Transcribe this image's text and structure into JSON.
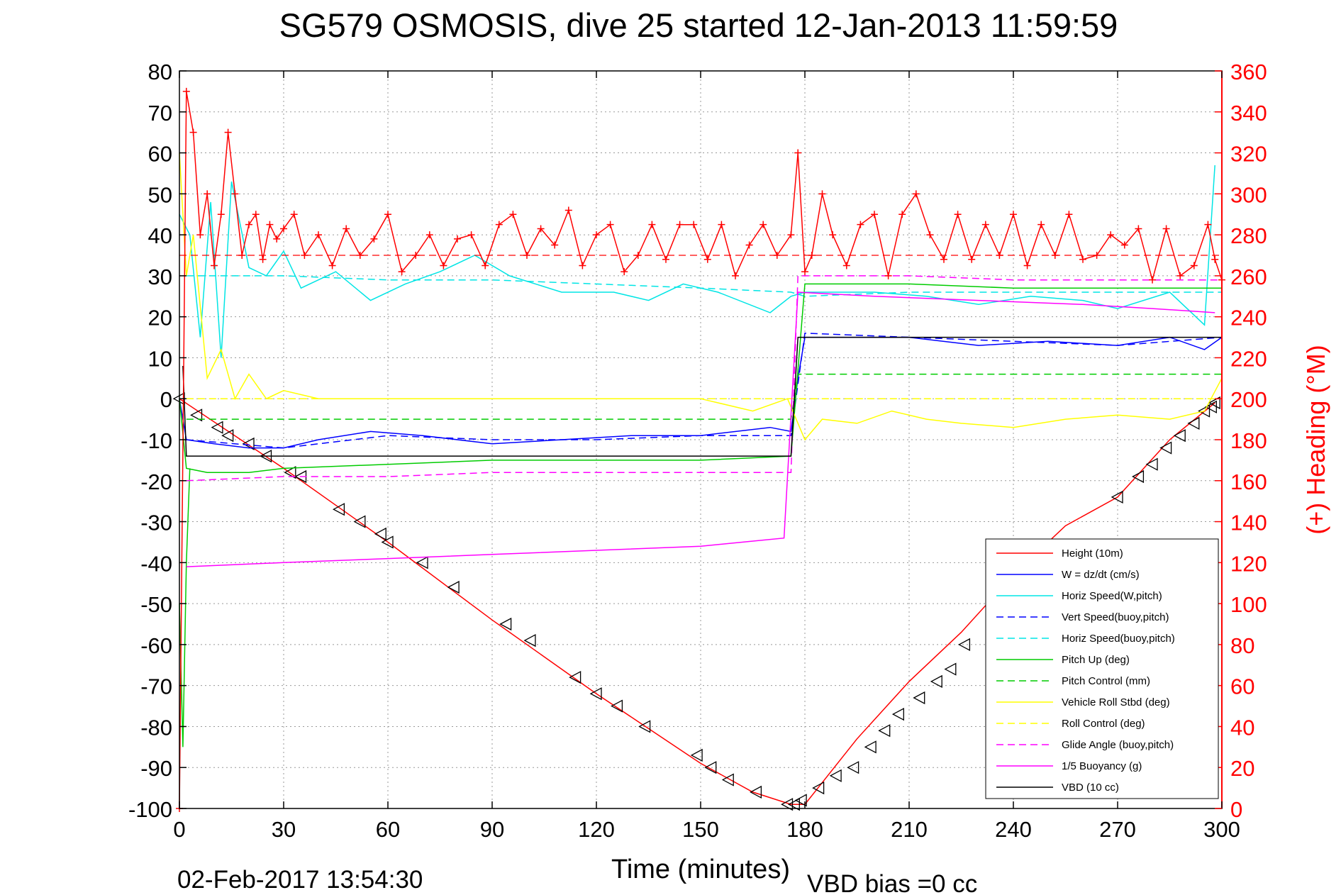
{
  "title": "SG579 OSMOSIS, dive 25 started 12-Jan-2013 11:59:59",
  "footer": {
    "timestamp": "02-Feb-2017 13:54:30",
    "vbd_bias": "VBD bias =0 cc"
  },
  "colors": {
    "axis": "#000000",
    "right_axis": "#ff0000",
    "height": "#ff0000",
    "w": "#0000ff",
    "horiz_speed": "#00e5e5",
    "pitch": "#00cc00",
    "roll": "#ffff00",
    "glide": "#ff00ff",
    "vbd": "#000000"
  },
  "chart_data": {
    "type": "line",
    "title": "SG579 OSMOSIS, dive 25 started 12-Jan-2013 11:59:59",
    "xlabel": "Time (minutes)",
    "ylabel": "",
    "y2label": "(+) Heading (°M)",
    "xlim": [
      0,
      300
    ],
    "ylim": [
      -100,
      80
    ],
    "y2lim": [
      0,
      360
    ],
    "grid": true,
    "legend_position": "bottom-right",
    "xticks": [
      0,
      30,
      60,
      90,
      120,
      150,
      180,
      210,
      240,
      270,
      300
    ],
    "yticks": [
      80,
      70,
      60,
      50,
      40,
      30,
      20,
      10,
      0,
      -10,
      -20,
      -30,
      -40,
      -50,
      -60,
      -70,
      -80,
      -90,
      -100
    ],
    "y2ticks": [
      360,
      340,
      320,
      300,
      280,
      260,
      240,
      220,
      200,
      180,
      160,
      140,
      120,
      100,
      80,
      60,
      40,
      20,
      0
    ],
    "legend": [
      {
        "label": "Height (10m)",
        "color": "#ff0000",
        "dash": "solid"
      },
      {
        "label": "W = dz/dt (cm/s)",
        "color": "#0000ff",
        "dash": "solid"
      },
      {
        "label": "Horiz Speed(W,pitch)",
        "color": "#00e5e5",
        "dash": "solid"
      },
      {
        "label": "Vert Speed(buoy,pitch)",
        "color": "#0000ff",
        "dash": "dashed"
      },
      {
        "label": "Horiz Speed(buoy,pitch)",
        "color": "#00e5e5",
        "dash": "dashed"
      },
      {
        "label": "Pitch Up (deg)",
        "color": "#00cc00",
        "dash": "solid"
      },
      {
        "label": "Pitch Control (mm)",
        "color": "#00cc00",
        "dash": "dashed"
      },
      {
        "label": "Vehicle Roll Stbd (deg)",
        "color": "#ffff00",
        "dash": "solid"
      },
      {
        "label": "Roll Control (deg)",
        "color": "#ffff00",
        "dash": "dashed"
      },
      {
        "label": "Glide Angle (buoy,pitch)",
        "color": "#ff00ff",
        "dash": "dashed"
      },
      {
        "label": "1/5 Buoyancy (g)",
        "color": "#ff00ff",
        "dash": "solid"
      },
      {
        "label": "VBD (10 cc)",
        "color": "#000000",
        "dash": "solid"
      }
    ],
    "series": [
      {
        "key": "height",
        "axis": "left",
        "color": "#ff0000",
        "dash": "solid",
        "x": [
          0,
          30,
          60,
          90,
          120,
          150,
          165,
          176,
          180,
          195,
          210,
          225,
          240,
          255,
          270,
          285,
          298
        ],
        "y": [
          0,
          -17,
          -35,
          -54,
          -72,
          -89,
          -96,
          -99,
          -99,
          -83,
          -69,
          -57,
          -43,
          -31,
          -24,
          -10,
          -1
        ]
      },
      {
        "key": "height_markers",
        "axis": "left",
        "color": "#000000",
        "marker": "triangle-left",
        "x": [
          0,
          5,
          11,
          14,
          20,
          25,
          32,
          35,
          46,
          52,
          58,
          60,
          70,
          79,
          94,
          101,
          114,
          120,
          126,
          134,
          149,
          153,
          158,
          166,
          175,
          177,
          179,
          184,
          189,
          194,
          199,
          203,
          207,
          213,
          218,
          222,
          226,
          270,
          276,
          280,
          284,
          288,
          292,
          295,
          297,
          298
        ],
        "y": [
          0,
          -4,
          -7,
          -9,
          -11,
          -14,
          -18,
          -19,
          -27,
          -30,
          -33,
          -35,
          -40,
          -46,
          -55,
          -59,
          -68,
          -72,
          -75,
          -80,
          -87,
          -90,
          -93,
          -96,
          -99,
          -99,
          -98,
          -95,
          -92,
          -90,
          -85,
          -81,
          -77,
          -73,
          -69,
          -66,
          -60,
          -24,
          -19,
          -16,
          -12,
          -9,
          -6,
          -3,
          -2,
          -1
        ]
      },
      {
        "key": "w",
        "axis": "left",
        "color": "#0000ff",
        "dash": "solid",
        "x": [
          0,
          2,
          10,
          20,
          30,
          40,
          55,
          70,
          90,
          110,
          130,
          150,
          170,
          176,
          178,
          180,
          200,
          210,
          230,
          250,
          270,
          285,
          295,
          300
        ],
        "y": [
          0,
          -10,
          -11,
          -12,
          -12,
          -10,
          -8,
          -9,
          -11,
          -10,
          -9,
          -9,
          -7,
          -8,
          5,
          15,
          15,
          15,
          13,
          14,
          13,
          15,
          12,
          15
        ]
      },
      {
        "key": "vert_speed_buoy",
        "axis": "left",
        "color": "#0000ff",
        "dash": "dashed",
        "x": [
          2,
          30,
          60,
          90,
          120,
          150,
          176,
          180,
          210,
          240,
          270,
          300
        ],
        "y": [
          -10,
          -12,
          -9,
          -10,
          -10,
          -9,
          -9,
          16,
          15,
          14,
          13,
          15
        ]
      },
      {
        "key": "horiz_speed_w",
        "axis": "left",
        "color": "#00e5e5",
        "dash": "solid",
        "x": [
          0,
          3,
          6,
          9,
          12,
          15,
          20,
          25,
          30,
          35,
          45,
          55,
          65,
          75,
          85,
          95,
          110,
          125,
          135,
          145,
          155,
          170,
          176,
          180,
          200,
          215,
          230,
          245,
          260,
          270,
          285,
          295,
          298
        ],
        "y": [
          45,
          40,
          15,
          48,
          10,
          53,
          32,
          30,
          36,
          27,
          31,
          24,
          28,
          31,
          35,
          30,
          26,
          26,
          24,
          28,
          26,
          21,
          25,
          26,
          26,
          25,
          23,
          25,
          24,
          22,
          26,
          18,
          57
        ]
      },
      {
        "key": "horiz_speed_buoy",
        "axis": "left",
        "color": "#00e5e5",
        "dash": "dashed",
        "x": [
          2,
          30,
          60,
          90,
          120,
          150,
          176,
          180,
          210,
          240,
          270,
          300
        ],
        "y": [
          30,
          30,
          29,
          29,
          28,
          27,
          26,
          25,
          26,
          26,
          26,
          26
        ]
      },
      {
        "key": "pitch",
        "axis": "left",
        "color": "#00cc00",
        "dash": "solid",
        "x": [
          0,
          2,
          8,
          20,
          30,
          60,
          90,
          120,
          150,
          176,
          180,
          210,
          240,
          270,
          300
        ],
        "y": [
          0,
          -17,
          -18,
          -18,
          -17,
          -16,
          -15,
          -15,
          -15,
          -14,
          28,
          28,
          27,
          27,
          27
        ]
      },
      {
        "key": "pitch_spike",
        "axis": "left",
        "color": "#00cc00",
        "dash": "solid",
        "x": [
          0,
          1,
          2,
          3
        ],
        "y": [
          -50,
          -85,
          -40,
          -17
        ]
      },
      {
        "key": "pitch_control",
        "axis": "left",
        "color": "#00cc00",
        "dash": "dashed",
        "x": [
          2,
          176,
          178,
          300
        ],
        "y": [
          -5,
          -5,
          6,
          6
        ]
      },
      {
        "key": "roll",
        "axis": "left",
        "color": "#ffff00",
        "dash": "solid",
        "x": [
          0,
          2,
          4,
          8,
          12,
          16,
          20,
          25,
          30,
          40,
          50,
          60,
          70,
          80,
          95,
          105,
          115,
          130,
          140,
          150,
          165,
          175,
          180,
          185,
          195,
          205,
          215,
          225,
          240,
          255,
          270,
          285,
          295,
          300
        ],
        "y": [
          60,
          30,
          40,
          5,
          12,
          0,
          6,
          0,
          2,
          0,
          0,
          0,
          0,
          0,
          0,
          0,
          0,
          0,
          0,
          0,
          -3,
          0,
          -10,
          -5,
          -6,
          -3,
          -5,
          -6,
          -7,
          -5,
          -4,
          -5,
          -3,
          5
        ]
      },
      {
        "key": "roll_control",
        "axis": "left",
        "color": "#ffff00",
        "dash": "dashed",
        "x": [
          2,
          300
        ],
        "y": [
          0,
          0
        ]
      },
      {
        "key": "glide_angle",
        "axis": "left",
        "color": "#ff00ff",
        "dash": "dashed",
        "x": [
          2,
          30,
          60,
          90,
          120,
          150,
          176,
          178,
          210,
          240,
          270,
          300
        ],
        "y": [
          -20,
          -19,
          -19,
          -18,
          -18,
          -18,
          -18,
          30,
          30,
          29,
          29,
          29
        ]
      },
      {
        "key": "buoyancy",
        "axis": "left",
        "color": "#ff00ff",
        "dash": "solid",
        "x": [
          2,
          30,
          60,
          90,
          120,
          150,
          174,
          178,
          200,
          230,
          260,
          280,
          298
        ],
        "y": [
          -41,
          -40,
          -39,
          -38,
          -37,
          -36,
          -34,
          26,
          25,
          24,
          23,
          22,
          21
        ]
      },
      {
        "key": "vbd",
        "axis": "left",
        "color": "#000000",
        "dash": "solid",
        "x": [
          1,
          2,
          176,
          178,
          300
        ],
        "y": [
          8,
          -14,
          -14,
          15,
          15
        ]
      },
      {
        "key": "heading",
        "axis": "right",
        "color": "#ff0000",
        "marker": "plus",
        "x": [
          0,
          2,
          4,
          6,
          8,
          10,
          12,
          14,
          16,
          18,
          20,
          22,
          24,
          26,
          28,
          30,
          33,
          36,
          40,
          44,
          48,
          52,
          56,
          60,
          64,
          68,
          72,
          76,
          80,
          84,
          88,
          92,
          96,
          100,
          104,
          108,
          112,
          116,
          120,
          124,
          128,
          132,
          136,
          140,
          144,
          148,
          152,
          156,
          160,
          164,
          168,
          172,
          176,
          178,
          180,
          182,
          185,
          188,
          192,
          196,
          200,
          204,
          208,
          212,
          216,
          220,
          224,
          228,
          232,
          236,
          240,
          244,
          248,
          252,
          256,
          260,
          264,
          268,
          272,
          276,
          280,
          284,
          288,
          292,
          296,
          298,
          300
        ],
        "y": [
          0,
          350,
          330,
          280,
          300,
          265,
          290,
          330,
          300,
          270,
          285,
          290,
          268,
          285,
          278,
          283,
          290,
          270,
          280,
          265,
          283,
          270,
          278,
          290,
          262,
          270,
          280,
          265,
          278,
          280,
          265,
          285,
          290,
          270,
          283,
          275,
          292,
          265,
          280,
          285,
          262,
          270,
          285,
          268,
          285,
          285,
          268,
          285,
          260,
          275,
          285,
          270,
          280,
          320,
          262,
          270,
          300,
          280,
          265,
          285,
          290,
          260,
          290,
          300,
          280,
          268,
          290,
          268,
          285,
          270,
          290,
          265,
          285,
          270,
          290,
          268,
          270,
          280,
          275,
          283,
          258,
          283,
          260,
          265,
          285,
          268,
          258
        ]
      }
    ]
  }
}
